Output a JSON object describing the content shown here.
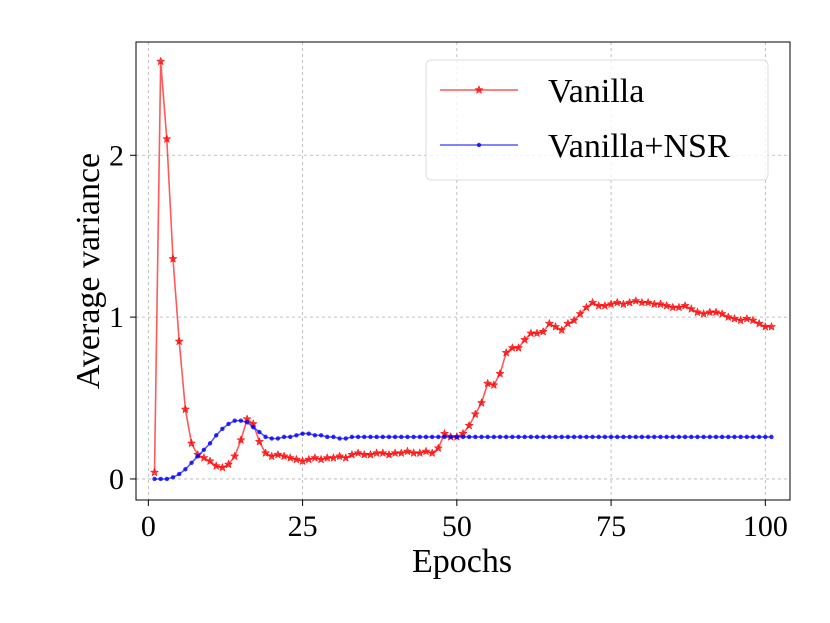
{
  "chart_data": {
    "type": "line",
    "title": "",
    "xlabel": "Epochs",
    "ylabel": "Average variance",
    "xlim": [
      -2,
      104
    ],
    "ylim": [
      -0.13,
      2.7
    ],
    "xticks": [
      0,
      25,
      50,
      75,
      100
    ],
    "xtick_labels": [
      "0",
      "25",
      "50",
      "75",
      "100"
    ],
    "yticks": [
      0,
      1,
      2
    ],
    "ytick_labels": [
      "0",
      "1",
      "2"
    ],
    "grid": true,
    "legend_position": "upper right",
    "series": [
      {
        "name": "Vanilla",
        "color": "#ff0000",
        "marker": "star",
        "x": [
          1,
          2,
          3,
          4,
          5,
          6,
          7,
          8,
          9,
          10,
          11,
          12,
          13,
          14,
          15,
          16,
          17,
          18,
          19,
          20,
          21,
          22,
          23,
          24,
          25,
          26,
          27,
          28,
          29,
          30,
          31,
          32,
          33,
          34,
          35,
          36,
          37,
          38,
          39,
          40,
          41,
          42,
          43,
          44,
          45,
          46,
          47,
          48,
          49,
          50,
          51,
          52,
          53,
          54,
          55,
          56,
          57,
          58,
          59,
          60,
          61,
          62,
          63,
          64,
          65,
          66,
          67,
          68,
          69,
          70,
          71,
          72,
          73,
          74,
          75,
          76,
          77,
          78,
          79,
          80,
          81,
          82,
          83,
          84,
          85,
          86,
          87,
          88,
          89,
          90,
          91,
          92,
          93,
          94,
          95,
          96,
          97,
          98,
          99,
          100,
          101
        ],
        "y": [
          0.04,
          2.58,
          2.1,
          1.36,
          0.85,
          0.43,
          0.22,
          0.15,
          0.13,
          0.11,
          0.08,
          0.07,
          0.09,
          0.14,
          0.24,
          0.37,
          0.34,
          0.23,
          0.16,
          0.14,
          0.15,
          0.14,
          0.13,
          0.12,
          0.11,
          0.12,
          0.13,
          0.12,
          0.13,
          0.13,
          0.14,
          0.13,
          0.15,
          0.16,
          0.15,
          0.15,
          0.16,
          0.16,
          0.15,
          0.16,
          0.16,
          0.17,
          0.16,
          0.16,
          0.17,
          0.16,
          0.19,
          0.28,
          0.26,
          0.26,
          0.28,
          0.33,
          0.4,
          0.47,
          0.59,
          0.58,
          0.65,
          0.78,
          0.81,
          0.81,
          0.86,
          0.9,
          0.9,
          0.91,
          0.96,
          0.94,
          0.92,
          0.96,
          0.98,
          1.02,
          1.06,
          1.09,
          1.07,
          1.07,
          1.08,
          1.09,
          1.08,
          1.09,
          1.1,
          1.09,
          1.09,
          1.08,
          1.08,
          1.07,
          1.06,
          1.06,
          1.07,
          1.05,
          1.03,
          1.02,
          1.03,
          1.03,
          1.02,
          1.0,
          0.99,
          0.98,
          0.99,
          0.98,
          0.96,
          0.94,
          0.94
        ]
      },
      {
        "name": "Vanilla+NSR",
        "color": "#0000ff",
        "marker": "dot",
        "x": [
          1,
          2,
          3,
          4,
          5,
          6,
          7,
          8,
          9,
          10,
          11,
          12,
          13,
          14,
          15,
          16,
          17,
          18,
          19,
          20,
          21,
          22,
          23,
          24,
          25,
          26,
          27,
          28,
          29,
          30,
          31,
          32,
          33,
          34,
          35,
          36,
          37,
          38,
          39,
          40,
          41,
          42,
          43,
          44,
          45,
          46,
          47,
          48,
          49,
          50,
          51,
          52,
          53,
          54,
          55,
          56,
          57,
          58,
          59,
          60,
          61,
          62,
          63,
          64,
          65,
          66,
          67,
          68,
          69,
          70,
          71,
          72,
          73,
          74,
          75,
          76,
          77,
          78,
          79,
          80,
          81,
          82,
          83,
          84,
          85,
          86,
          87,
          88,
          89,
          90,
          91,
          92,
          93,
          94,
          95,
          96,
          97,
          98,
          99,
          100,
          101
        ],
        "y": [
          0.0,
          0.0,
          0.0,
          0.01,
          0.03,
          0.06,
          0.1,
          0.14,
          0.18,
          0.22,
          0.27,
          0.31,
          0.34,
          0.36,
          0.36,
          0.35,
          0.32,
          0.29,
          0.26,
          0.25,
          0.25,
          0.26,
          0.26,
          0.27,
          0.28,
          0.28,
          0.27,
          0.27,
          0.26,
          0.26,
          0.25,
          0.25,
          0.26,
          0.26,
          0.26,
          0.26,
          0.26,
          0.26,
          0.26,
          0.26,
          0.26,
          0.26,
          0.26,
          0.26,
          0.26,
          0.26,
          0.26,
          0.26,
          0.26,
          0.26,
          0.26,
          0.26,
          0.26,
          0.26,
          0.26,
          0.26,
          0.26,
          0.26,
          0.26,
          0.26,
          0.26,
          0.26,
          0.26,
          0.26,
          0.26,
          0.26,
          0.26,
          0.26,
          0.26,
          0.26,
          0.26,
          0.26,
          0.26,
          0.26,
          0.26,
          0.26,
          0.26,
          0.26,
          0.26,
          0.26,
          0.26,
          0.26,
          0.26,
          0.26,
          0.26,
          0.26,
          0.26,
          0.26,
          0.26,
          0.26,
          0.26,
          0.26,
          0.26,
          0.26,
          0.26,
          0.26,
          0.26,
          0.26,
          0.26,
          0.26,
          0.26
        ]
      }
    ]
  }
}
